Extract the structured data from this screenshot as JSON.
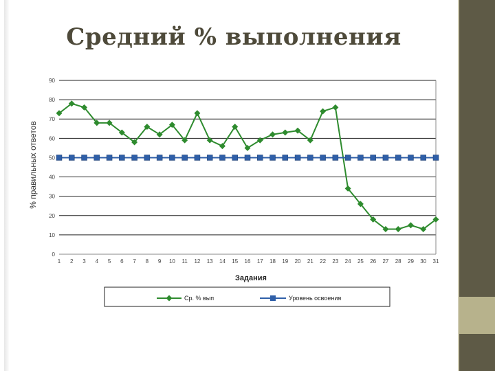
{
  "slide": {
    "title": "Средний % выполнения"
  },
  "colors": {
    "series1": "#2e8b2e",
    "series2": "#2f5fa8",
    "sidebar": "#5e5a46",
    "accent_band": "#b7b28c"
  },
  "chart_data": {
    "type": "line",
    "title": "",
    "xlabel": "Задания",
    "ylabel": "% правильных ответов",
    "ylim": [
      0,
      90
    ],
    "yticks": [
      0,
      10,
      20,
      30,
      40,
      50,
      60,
      70,
      80,
      90
    ],
    "grid": true,
    "legend_position": "bottom",
    "x": [
      1,
      2,
      3,
      4,
      5,
      6,
      7,
      8,
      9,
      10,
      11,
      12,
      13,
      14,
      15,
      16,
      17,
      18,
      19,
      20,
      21,
      22,
      23,
      24,
      25,
      26,
      27,
      28,
      29,
      30,
      31
    ],
    "series": [
      {
        "name": "Ср. % вып",
        "marker": "diamond",
        "values": [
          73,
          78,
          76,
          68,
          68,
          63,
          58,
          66,
          62,
          67,
          59,
          73,
          59,
          56,
          66,
          55,
          59,
          62,
          63,
          64,
          59,
          74,
          76,
          34,
          26,
          18,
          13,
          13,
          15,
          13,
          18
        ]
      },
      {
        "name": "Уровень освоения",
        "marker": "square",
        "values": [
          50,
          50,
          50,
          50,
          50,
          50,
          50,
          50,
          50,
          50,
          50,
          50,
          50,
          50,
          50,
          50,
          50,
          50,
          50,
          50,
          50,
          50,
          50,
          50,
          50,
          50,
          50,
          50,
          50,
          50,
          50
        ]
      }
    ]
  }
}
